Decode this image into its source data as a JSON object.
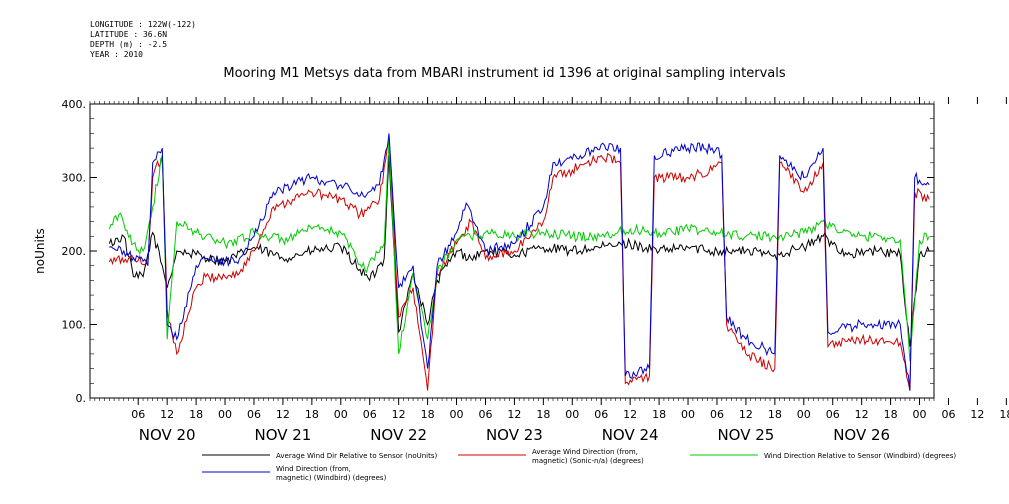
{
  "header": {
    "longitude": "LONGITUDE : 122W(-122)",
    "latitude": "LATITUDE : 36.6N",
    "depth": "DEPTH (m) : -2.5",
    "year": "YEAR : 2010"
  },
  "chart_data": {
    "type": "line",
    "title": "Mooring M1 Metsys data from MBARI instrument id 1396 at original sampling intervals",
    "ylabel": "noUnits",
    "xlabel": "",
    "xlim": [
      "2010-11-19T20:00",
      "2010-11-27T03:00"
    ],
    "ylim": [
      0,
      400
    ],
    "y_ticks": [
      "0.",
      "100.",
      "200.",
      "300.",
      "400."
    ],
    "x_hour_labels": [
      "06",
      "12",
      "18",
      "00",
      "06",
      "12",
      "18",
      "00",
      "06",
      "12",
      "18",
      "00",
      "06",
      "12",
      "18",
      "00",
      "06",
      "12",
      "18",
      "00",
      "06",
      "12",
      "18",
      "00",
      "06",
      "12",
      "18",
      "00",
      "06",
      "12",
      "18",
      "00"
    ],
    "x_day_labels": [
      "NOV 20",
      "NOV 21",
      "NOV 22",
      "NOV 23",
      "NOV 24",
      "NOV 25",
      "NOV 26"
    ],
    "grid": false,
    "legend_placement": "bottom",
    "series": [
      {
        "name": "Average Wind Dir Relative to Sensor (noUnits)",
        "color": "#000000",
        "points": [
          [
            "2010-11-20T00:00",
            210
          ],
          [
            "2010-11-20T03:00",
            220
          ],
          [
            "2010-11-20T05:00",
            165
          ],
          [
            "2010-11-20T07:00",
            165
          ],
          [
            "2010-11-20T09:00",
            225
          ],
          [
            "2010-11-20T11:00",
            180
          ],
          [
            "2010-11-20T12:00",
            150
          ],
          [
            "2010-11-20T14:00",
            200
          ],
          [
            "2010-11-20T18:00",
            195
          ],
          [
            "2010-11-21T00:00",
            185
          ],
          [
            "2010-11-21T06:00",
            205
          ],
          [
            "2010-11-21T12:00",
            190
          ],
          [
            "2010-11-21T18:00",
            200
          ],
          [
            "2010-11-22T00:00",
            205
          ],
          [
            "2010-11-22T04:00",
            175
          ],
          [
            "2010-11-22T06:00",
            160
          ],
          [
            "2010-11-22T09:00",
            190
          ],
          [
            "2010-11-22T10:00",
            330
          ],
          [
            "2010-11-22T12:00",
            90
          ],
          [
            "2010-11-22T15:00",
            170
          ],
          [
            "2010-11-22T18:00",
            100
          ],
          [
            "2010-11-22T20:00",
            160
          ],
          [
            "2010-11-23T00:00",
            200
          ],
          [
            "2010-11-23T03:00",
            190
          ],
          [
            "2010-11-23T06:00",
            200
          ],
          [
            "2010-11-23T12:00",
            195
          ],
          [
            "2010-11-23T18:00",
            205
          ],
          [
            "2010-11-24T00:00",
            200
          ],
          [
            "2010-11-24T06:00",
            205
          ],
          [
            "2010-11-24T12:00",
            210
          ],
          [
            "2010-11-24T18:00",
            200
          ],
          [
            "2010-11-25T00:00",
            205
          ],
          [
            "2010-11-25T06:00",
            200
          ],
          [
            "2010-11-25T12:00",
            200
          ],
          [
            "2010-11-25T18:00",
            195
          ],
          [
            "2010-11-26T00:00",
            205
          ],
          [
            "2010-11-26T04:00",
            220
          ],
          [
            "2010-11-26T09:00",
            195
          ],
          [
            "2010-11-26T15:00",
            200
          ],
          [
            "2010-11-26T20:00",
            195
          ],
          [
            "2010-11-26T22:00",
            70
          ],
          [
            "2010-11-27T00:00",
            195
          ],
          [
            "2010-11-27T02:00",
            200
          ]
        ]
      },
      {
        "name": "Average Wind Direction (from, magnetic) (Sonic-n/a) (degrees)",
        "color": "#d00000",
        "points": [
          [
            "2010-11-20T00:00",
            185
          ],
          [
            "2010-11-20T04:00",
            190
          ],
          [
            "2010-11-20T08:00",
            185
          ],
          [
            "2010-11-20T09:00",
            300
          ],
          [
            "2010-11-20T11:00",
            330
          ],
          [
            "2010-11-20T12:00",
            120
          ],
          [
            "2010-11-20T14:00",
            60
          ],
          [
            "2010-11-20T18:00",
            150
          ],
          [
            "2010-11-20T20:00",
            165
          ],
          [
            "2010-11-21T00:00",
            165
          ],
          [
            "2010-11-21T03:00",
            170
          ],
          [
            "2010-11-21T06:00",
            200
          ],
          [
            "2010-11-21T10:00",
            260
          ],
          [
            "2010-11-21T14:00",
            270
          ],
          [
            "2010-11-21T18:00",
            280
          ],
          [
            "2010-11-22T00:00",
            270
          ],
          [
            "2010-11-22T04:00",
            250
          ],
          [
            "2010-11-22T08:00",
            270
          ],
          [
            "2010-11-22T10:00",
            350
          ],
          [
            "2010-11-22T12:00",
            110
          ],
          [
            "2010-11-22T15:00",
            150
          ],
          [
            "2010-11-22T18:00",
            10
          ],
          [
            "2010-11-22T20:00",
            170
          ],
          [
            "2010-11-23T00:00",
            210
          ],
          [
            "2010-11-23T03:00",
            240
          ],
          [
            "2010-11-23T06:00",
            190
          ],
          [
            "2010-11-23T12:00",
            200
          ],
          [
            "2010-11-23T18:00",
            240
          ],
          [
            "2010-11-23T20:00",
            300
          ],
          [
            "2010-11-24T00:00",
            310
          ],
          [
            "2010-11-24T06:00",
            330
          ],
          [
            "2010-11-24T10:00",
            320
          ],
          [
            "2010-11-24T11:00",
            20
          ],
          [
            "2010-11-24T16:00",
            30
          ],
          [
            "2010-11-24T17:00",
            300
          ],
          [
            "2010-11-25T00:00",
            300
          ],
          [
            "2010-11-25T05:00",
            310
          ],
          [
            "2010-11-25T07:00",
            320
          ],
          [
            "2010-11-25T08:00",
            100
          ],
          [
            "2010-11-25T12:00",
            60
          ],
          [
            "2010-11-25T18:00",
            40
          ],
          [
            "2010-11-25T19:00",
            320
          ],
          [
            "2010-11-26T00:00",
            280
          ],
          [
            "2010-11-26T04:00",
            320
          ],
          [
            "2010-11-26T05:00",
            70
          ],
          [
            "2010-11-26T12:00",
            80
          ],
          [
            "2010-11-26T20:00",
            75
          ],
          [
            "2010-11-26T22:00",
            10
          ],
          [
            "2010-11-26T23:00",
            280
          ],
          [
            "2010-11-27T02:00",
            270
          ]
        ]
      },
      {
        "name": "Wind Direction Relative to Sensor (Windbird) (degrees)",
        "color": "#00cc00",
        "points": [
          [
            "2010-11-20T00:00",
            230
          ],
          [
            "2010-11-20T02:00",
            250
          ],
          [
            "2010-11-20T05:00",
            210
          ],
          [
            "2010-11-20T07:00",
            200
          ],
          [
            "2010-11-20T09:00",
            260
          ],
          [
            "2010-11-20T11:00",
            330
          ],
          [
            "2010-11-20T12:00",
            80
          ],
          [
            "2010-11-20T14:00",
            240
          ],
          [
            "2010-11-20T18:00",
            225
          ],
          [
            "2010-11-21T00:00",
            210
          ],
          [
            "2010-11-21T06:00",
            225
          ],
          [
            "2010-11-21T12:00",
            215
          ],
          [
            "2010-11-21T18:00",
            230
          ],
          [
            "2010-11-22T00:00",
            225
          ],
          [
            "2010-11-22T05:00",
            175
          ],
          [
            "2010-11-22T09:00",
            210
          ],
          [
            "2010-11-22T10:00",
            350
          ],
          [
            "2010-11-22T12:00",
            60
          ],
          [
            "2010-11-22T15:00",
            170
          ],
          [
            "2010-11-22T18:00",
            80
          ],
          [
            "2010-11-22T20:00",
            170
          ],
          [
            "2010-11-23T00:00",
            215
          ],
          [
            "2010-11-23T06:00",
            225
          ],
          [
            "2010-11-23T12:00",
            220
          ],
          [
            "2010-11-23T18:00",
            225
          ],
          [
            "2010-11-24T00:00",
            220
          ],
          [
            "2010-11-24T06:00",
            220
          ],
          [
            "2010-11-24T12:00",
            230
          ],
          [
            "2010-11-24T18:00",
            225
          ],
          [
            "2010-11-25T00:00",
            230
          ],
          [
            "2010-11-25T06:00",
            225
          ],
          [
            "2010-11-25T12:00",
            220
          ],
          [
            "2010-11-25T18:00",
            220
          ],
          [
            "2010-11-26T00:00",
            225
          ],
          [
            "2010-11-26T04:00",
            240
          ],
          [
            "2010-11-26T10:00",
            220
          ],
          [
            "2010-11-26T16:00",
            220
          ],
          [
            "2010-11-26T20:00",
            215
          ],
          [
            "2010-11-26T22:00",
            50
          ],
          [
            "2010-11-27T00:00",
            215
          ],
          [
            "2010-11-27T02:00",
            220
          ]
        ]
      },
      {
        "name": "Wind Direction (from, magnetic) (Windbird) (degrees)",
        "color": "#0000cc",
        "points": [
          [
            "2010-11-20T00:00",
            205
          ],
          [
            "2010-11-20T04:00",
            195
          ],
          [
            "2010-11-20T08:00",
            180
          ],
          [
            "2010-11-20T09:00",
            320
          ],
          [
            "2010-11-20T11:00",
            340
          ],
          [
            "2010-11-20T12:00",
            100
          ],
          [
            "2010-11-20T14:00",
            80
          ],
          [
            "2010-11-20T18:00",
            180
          ],
          [
            "2010-11-20T20:00",
            190
          ],
          [
            "2010-11-21T00:00",
            185
          ],
          [
            "2010-11-21T03:00",
            190
          ],
          [
            "2010-11-21T06:00",
            220
          ],
          [
            "2010-11-21T10:00",
            280
          ],
          [
            "2010-11-21T14:00",
            290
          ],
          [
            "2010-11-21T18:00",
            300
          ],
          [
            "2010-11-22T00:00",
            290
          ],
          [
            "2010-11-22T04:00",
            275
          ],
          [
            "2010-11-22T08:00",
            290
          ],
          [
            "2010-11-22T10:00",
            360
          ],
          [
            "2010-11-22T12:00",
            150
          ],
          [
            "2010-11-22T15:00",
            180
          ],
          [
            "2010-11-22T18:00",
            40
          ],
          [
            "2010-11-22T20:00",
            180
          ],
          [
            "2010-11-23T00:00",
            225
          ],
          [
            "2010-11-23T02:00",
            265
          ],
          [
            "2010-11-23T06:00",
            200
          ],
          [
            "2010-11-23T12:00",
            210
          ],
          [
            "2010-11-23T18:00",
            260
          ],
          [
            "2010-11-23T20:00",
            320
          ],
          [
            "2010-11-24T00:00",
            325
          ],
          [
            "2010-11-24T06:00",
            345
          ],
          [
            "2010-11-24T10:00",
            340
          ],
          [
            "2010-11-24T11:00",
            30
          ],
          [
            "2010-11-24T16:00",
            40
          ],
          [
            "2010-11-24T17:00",
            330
          ],
          [
            "2010-11-25T00:00",
            340
          ],
          [
            "2010-11-25T05:00",
            340
          ],
          [
            "2010-11-25T07:00",
            330
          ],
          [
            "2010-11-25T08:00",
            110
          ],
          [
            "2010-11-25T12:00",
            80
          ],
          [
            "2010-11-25T18:00",
            60
          ],
          [
            "2010-11-25T19:00",
            330
          ],
          [
            "2010-11-26T00:00",
            300
          ],
          [
            "2010-11-26T04:00",
            340
          ],
          [
            "2010-11-26T05:00",
            90
          ],
          [
            "2010-11-26T12:00",
            100
          ],
          [
            "2010-11-26T20:00",
            100
          ],
          [
            "2010-11-26T22:00",
            10
          ],
          [
            "2010-11-26T23:00",
            300
          ],
          [
            "2010-11-27T02:00",
            290
          ]
        ]
      }
    ]
  }
}
